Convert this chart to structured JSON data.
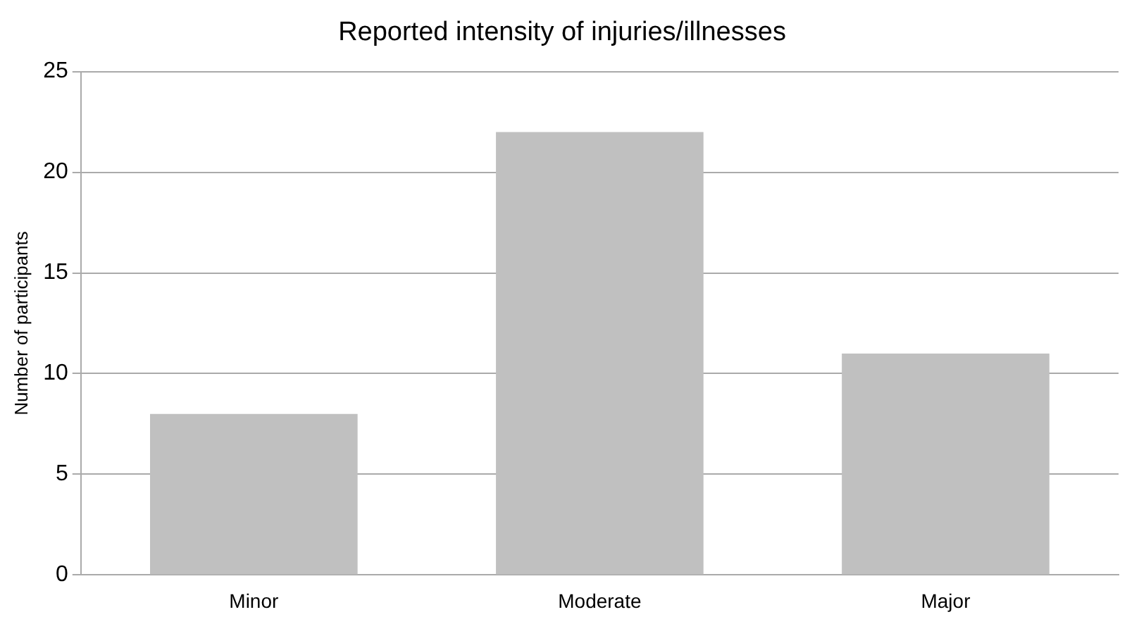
{
  "chart_data": {
    "type": "bar",
    "title": "Reported intensity of injuries/illnesses",
    "ylabel": "Number of participants",
    "categories": [
      "Minor",
      "Moderate",
      "Major"
    ],
    "values": [
      8,
      22,
      11
    ],
    "color": "#c0c0c0",
    "ylim": [
      0,
      25
    ],
    "yticks": [
      0,
      5,
      10,
      15,
      20,
      25
    ],
    "grid": "y"
  }
}
